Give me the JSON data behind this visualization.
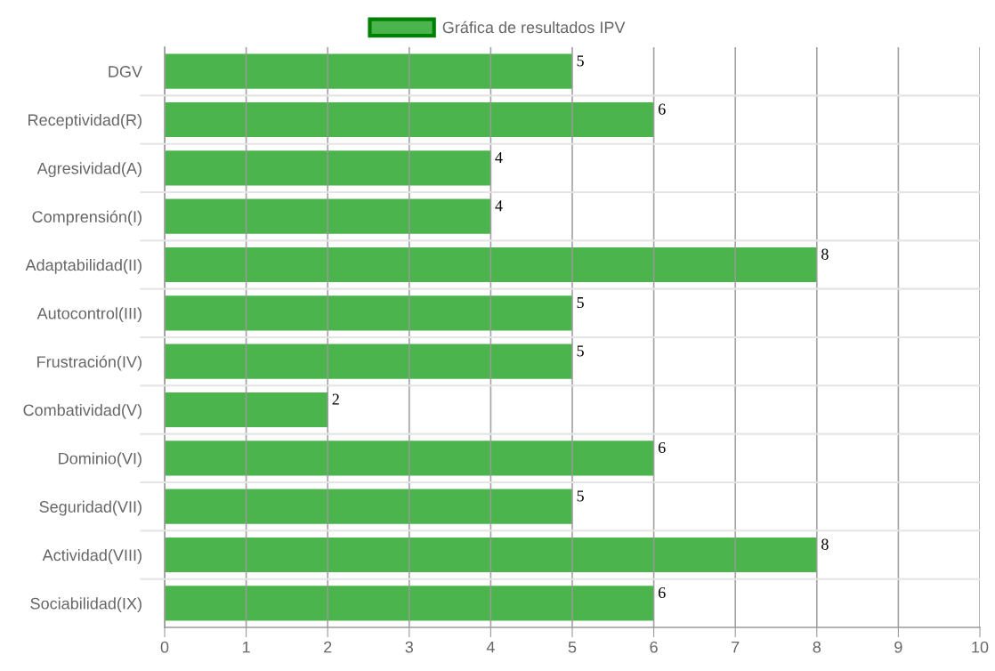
{
  "chart_data": {
    "type": "bar",
    "orientation": "horizontal",
    "categories": [
      "DGV",
      "Receptividad(R)",
      "Agresividad(A)",
      "Comprensión(I)",
      "Adaptabilidad(II)",
      "Autocontrol(III)",
      "Frustración(IV)",
      "Combatividad(V)",
      "Dominio(VI)",
      "Seguridad(VII)",
      "Actividad(VIII)",
      "Sociabilidad(IX)"
    ],
    "series": [
      {
        "name": "Gráfica de resultados IPV",
        "color": "#4cb44c",
        "values": [
          5,
          6,
          4,
          4,
          8,
          5,
          5,
          2,
          6,
          5,
          8,
          6
        ]
      }
    ],
    "xlim": [
      0,
      10
    ],
    "xticks": [
      0,
      1,
      2,
      3,
      4,
      5,
      6,
      7,
      8,
      9,
      10
    ],
    "grid": true,
    "legend": "top",
    "data_labels": true
  }
}
